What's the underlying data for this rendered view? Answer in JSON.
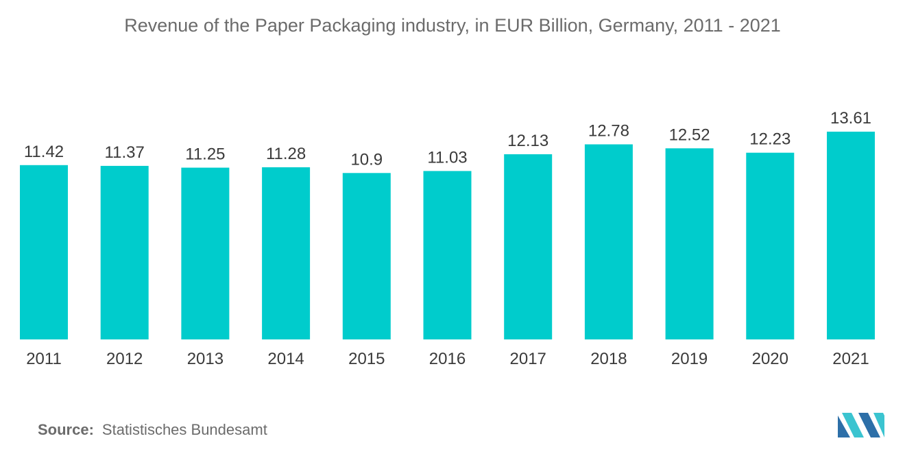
{
  "chart_data": {
    "type": "bar",
    "title": "Revenue of the Paper Packaging industry, in EUR Billion, Germany, 2011 - 2021",
    "xlabel": "",
    "ylabel": "",
    "categories": [
      "2011",
      "2012",
      "2013",
      "2014",
      "2015",
      "2016",
      "2017",
      "2018",
      "2019",
      "2020",
      "2021"
    ],
    "values": [
      11.42,
      11.37,
      11.25,
      11.28,
      10.9,
      11.03,
      12.13,
      12.78,
      12.52,
      12.23,
      13.61
    ],
    "value_labels": [
      "11.42",
      "11.37",
      "11.25",
      "11.28",
      "10.9",
      "11.03",
      "12.13",
      "12.78",
      "12.52",
      "12.23",
      "13.61"
    ],
    "ylim": [
      0,
      13.61
    ],
    "grid": false,
    "legend": "none",
    "bar_color": "#00cccc"
  },
  "source": {
    "label": "Source:",
    "text": "Statistisches Bundesamt"
  },
  "logo": {
    "icon": "mordor-intelligence-logo-icon",
    "colors": [
      "#2d6fa8",
      "#3bc4d0"
    ]
  }
}
